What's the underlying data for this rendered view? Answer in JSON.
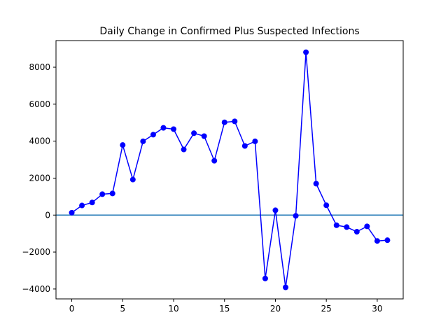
{
  "chart_data": {
    "type": "line",
    "title": "Daily Change in Confirmed Plus Suspected Infections",
    "xlabel": "",
    "ylabel": "",
    "xlim": [
      -1.55,
      32.55
    ],
    "ylim": [
      -4535,
      9440
    ],
    "xticks": [
      0,
      5,
      10,
      15,
      20,
      25,
      30
    ],
    "yticks": [
      -4000,
      -2000,
      0,
      2000,
      4000,
      6000,
      8000
    ],
    "grid": false,
    "series": [
      {
        "color": "#0000ff",
        "marker": "circle",
        "x": [
          0,
          1,
          2,
          3,
          4,
          5,
          6,
          7,
          8,
          9,
          10,
          11,
          12,
          13,
          14,
          15,
          16,
          17,
          18,
          19,
          20,
          21,
          22,
          23,
          24,
          25,
          26,
          27,
          28,
          29,
          30,
          31
        ],
        "values": [
          130,
          520,
          680,
          1130,
          1170,
          3790,
          1920,
          3990,
          4350,
          4720,
          4650,
          3550,
          4430,
          4270,
          2940,
          5020,
          5070,
          3740,
          3990,
          -3430,
          260,
          -3910,
          -40,
          8810,
          1700,
          530,
          -550,
          -650,
          -900,
          -610,
          -1400,
          -1360
        ]
      }
    ],
    "reference_lines": [
      {
        "orientation": "horizontal",
        "y": 0,
        "color": "#1f77b4"
      }
    ]
  }
}
